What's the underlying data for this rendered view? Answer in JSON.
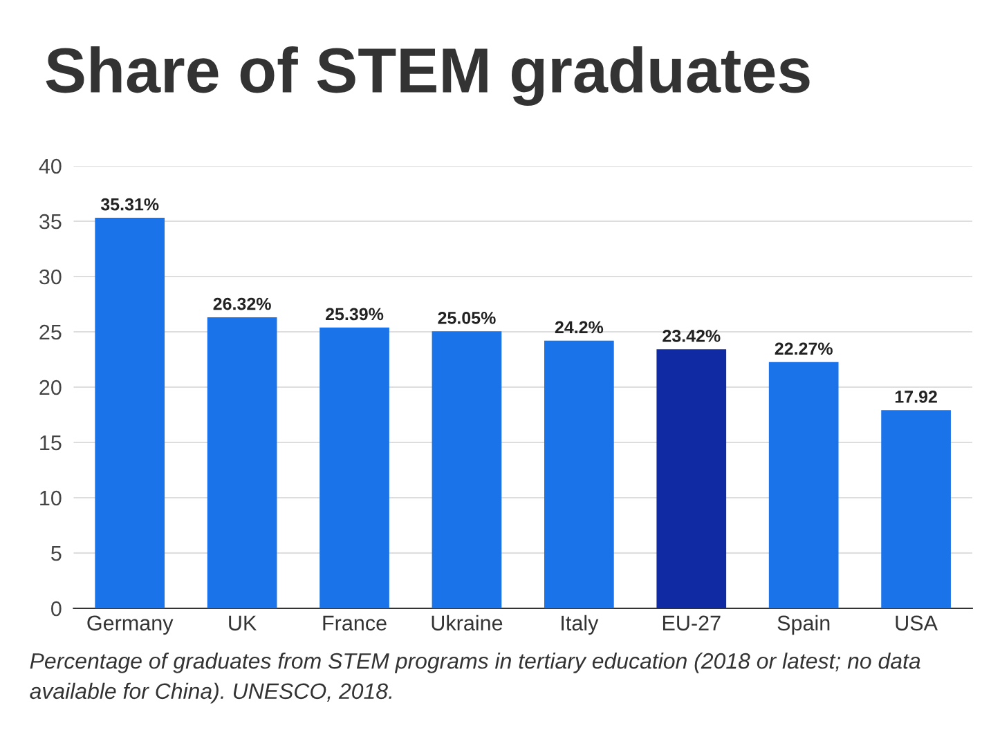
{
  "chart_data": {
    "type": "bar",
    "title": "Share of STEM graduates",
    "categories": [
      "Germany",
      "UK",
      "France",
      "Ukraine",
      "Italy",
      "EU-27",
      "Spain",
      "USA"
    ],
    "values": [
      35.31,
      26.32,
      25.39,
      25.05,
      24.2,
      23.42,
      22.27,
      17.92
    ],
    "value_labels": [
      "35.31%",
      "26.32%",
      "25.39%",
      "25.05%",
      "24.2%",
      "23.42%",
      "22.27%",
      "17.92"
    ],
    "colors": [
      "#1a73e8",
      "#1a73e8",
      "#1a73e8",
      "#1a73e8",
      "#1a73e8",
      "#0f2aa3",
      "#1a73e8",
      "#1a73e8"
    ],
    "ylim": [
      0,
      40
    ],
    "yticks": [
      0,
      5,
      10,
      15,
      20,
      25,
      30,
      35,
      40
    ],
    "grid": "y",
    "annotations": [
      "Percentage of graduates from STEM programs in tertiary education (2018 or latest; no data available for China). UNESCO, 2018."
    ]
  }
}
